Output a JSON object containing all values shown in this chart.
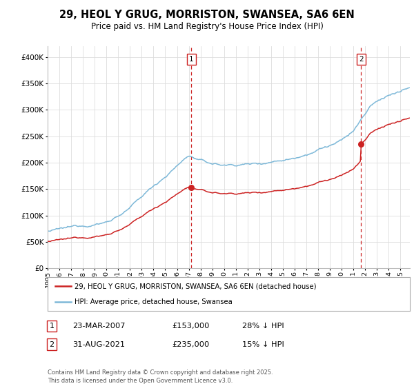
{
  "title": "29, HEOL Y GRUG, MORRISTON, SWANSEA, SA6 6EN",
  "subtitle": "Price paid vs. HM Land Registry's House Price Index (HPI)",
  "ylim": [
    0,
    420000
  ],
  "xlim_start": 1995.0,
  "xlim_end": 2025.8,
  "hpi_color": "#7db8d8",
  "price_color": "#cc2222",
  "marker1_x": 2007.22,
  "marker1_y": 153000,
  "marker2_x": 2021.66,
  "marker2_y": 235000,
  "legend_line1": "29, HEOL Y GRUG, MORRISTON, SWANSEA, SA6 6EN (detached house)",
  "legend_line2": "HPI: Average price, detached house, Swansea",
  "table_row1": [
    "1",
    "23-MAR-2007",
    "£153,000",
    "28% ↓ HPI"
  ],
  "table_row2": [
    "2",
    "31-AUG-2021",
    "£235,000",
    "15% ↓ HPI"
  ],
  "footnote": "Contains HM Land Registry data © Crown copyright and database right 2025.\nThis data is licensed under the Open Government Licence v3.0.",
  "background_color": "#ffffff",
  "grid_color": "#dddddd"
}
